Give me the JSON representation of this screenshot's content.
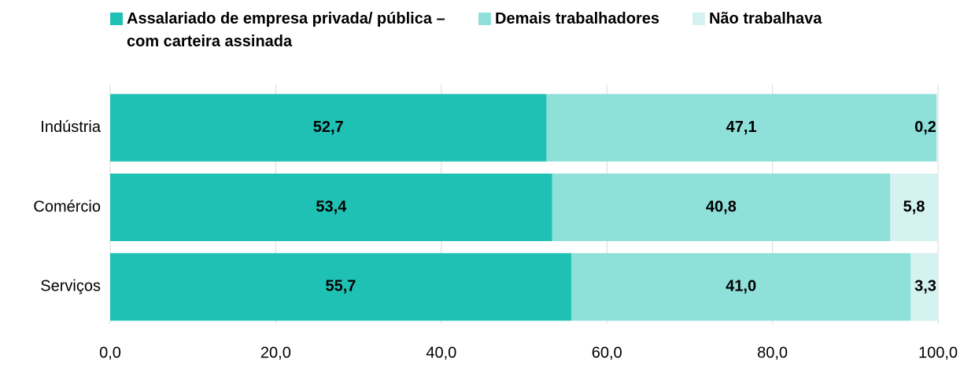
{
  "chart_data": {
    "type": "stacked_barh",
    "categories": [
      "Indústria",
      "Comércio",
      "Serviços"
    ],
    "series": [
      {
        "name": "Assalariado de empresa privada/ pública – com carteira assinada",
        "color": "#20c1b5",
        "values": [
          52.7,
          53.4,
          55.7
        ],
        "value_labels": [
          "52,7",
          "53,4",
          "55,7"
        ]
      },
      {
        "name": "Demais trabalhadores",
        "color": "#8ee0d9",
        "values": [
          47.1,
          40.8,
          41.0
        ],
        "value_labels": [
          "47,1",
          "40,8",
          "41,0"
        ]
      },
      {
        "name": "Não trabalhava",
        "color": "#d4f2ef",
        "values": [
          0.2,
          5.8,
          3.3
        ],
        "value_labels": [
          "0,2",
          "5,8",
          "3,3"
        ]
      }
    ],
    "xlim": [
      0,
      100
    ],
    "xticks": [
      {
        "value": 0,
        "label": "0,0"
      },
      {
        "value": 20,
        "label": "20,0"
      },
      {
        "value": 40,
        "label": "40,0"
      },
      {
        "value": 60,
        "label": "60,0"
      },
      {
        "value": 80,
        "label": "80,0"
      },
      {
        "value": 100,
        "label": "100,0"
      }
    ],
    "grid": true,
    "legend": "top"
  }
}
